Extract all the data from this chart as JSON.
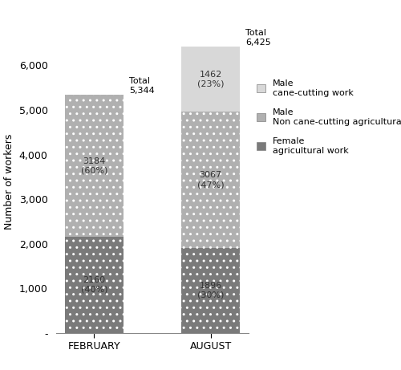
{
  "categories": [
    "FEBRUARY",
    "AUGUST"
  ],
  "female_ag": [
    2160,
    1896
  ],
  "male_non_cane": [
    3184,
    3067
  ],
  "male_cane": [
    0,
    1462
  ],
  "female_pct": [
    "(40%)",
    "(30%)"
  ],
  "male_non_cane_pct": [
    "(60%)",
    "(47%)"
  ],
  "male_cane_pct": [
    "",
    "(23%)"
  ],
  "totals": [
    "Total\n5,344",
    "Total\n6,425"
  ],
  "colors_female": "#7a7a7a",
  "colors_male_non_cane": "#b0b0b0",
  "colors_male_cane": "#d8d8d8",
  "hatch_female": "..",
  "hatch_male_non_cane": "..",
  "hatch_male_cane": "",
  "ylabel": "Number of workers",
  "ylim": [
    0,
    6800
  ],
  "yticks": [
    0,
    1000,
    2000,
    3000,
    4000,
    5000,
    6000
  ],
  "ytick_labels": [
    "-",
    "1,000",
    "2,000",
    "3,000",
    "4,000",
    "5,000",
    "6,000"
  ],
  "legend_labels": [
    "Male\ncane-cutting work",
    "Male\nNon cane-cutting agricultural work",
    "Female\nagricultural work"
  ],
  "bar_width": 0.5,
  "text_color_dark": "#333333",
  "text_color_light": "#333333"
}
